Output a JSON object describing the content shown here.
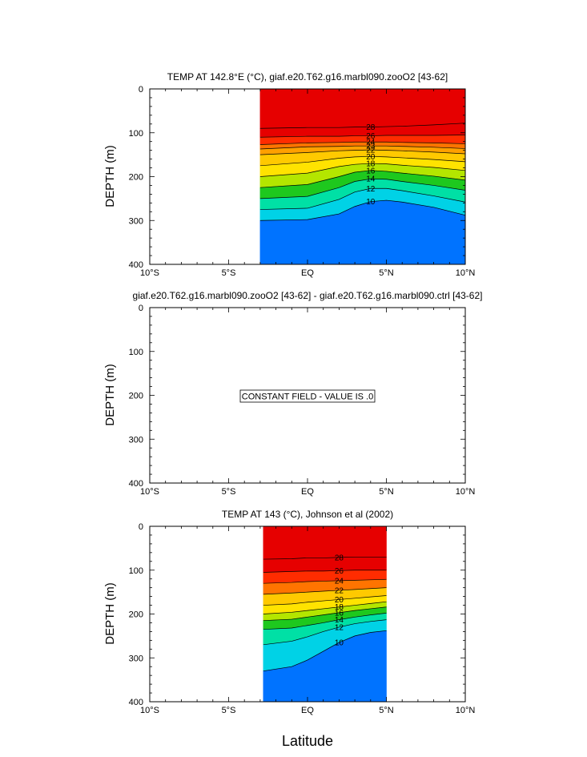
{
  "figure": {
    "xlabel": "Latitude",
    "x_ticks": [
      "10°S",
      "5°S",
      "EQ",
      "5°N",
      "10°N"
    ],
    "y_ticks": [
      "0",
      "100",
      "200",
      "300",
      "400"
    ]
  },
  "chart_data": [
    {
      "type": "heatmap",
      "subtype": "filled-contour depth-latitude section",
      "title": "TEMP AT 142.8°E (°C), giaf.e20.T62.g16.marbl090.zooO2 [43-62]",
      "ylabel": "DEPTH (m)",
      "xlim": [
        -10,
        10
      ],
      "ylim": [
        400,
        0
      ],
      "data_extent_lat": [
        -3,
        10
      ],
      "x": [
        -3,
        0,
        2,
        3,
        4,
        5,
        6,
        8,
        10
      ],
      "contour_levels": [
        28,
        26,
        24,
        23,
        22,
        20,
        18,
        16,
        14,
        12,
        10
      ],
      "contour_depths": {
        "28": [
          90,
          88,
          88,
          87,
          87,
          86,
          85,
          82,
          78
        ],
        "26": [
          110,
          108,
          108,
          107,
          107,
          106,
          106,
          106,
          105
        ],
        "24": [
          127,
          123,
          122,
          121,
          121,
          121,
          122,
          123,
          125
        ],
        "23": [
          137,
          132,
          131,
          130,
          130,
          130,
          131,
          133,
          136
        ],
        "22": [
          150,
          145,
          141,
          140,
          139,
          140,
          141,
          144,
          148
        ],
        "20": [
          175,
          167,
          158,
          155,
          154,
          155,
          157,
          161,
          166
        ],
        "18": [
          200,
          192,
          177,
          172,
          170,
          171,
          174,
          179,
          186
        ],
        "16": [
          225,
          218,
          200,
          190,
          186,
          188,
          192,
          199,
          208
        ],
        "14": [
          250,
          245,
          225,
          211,
          205,
          206,
          211,
          220,
          231
        ],
        "12": [
          275,
          272,
          252,
          235,
          227,
          227,
          232,
          244,
          258
        ],
        "10": [
          300,
          298,
          285,
          268,
          257,
          254,
          258,
          270,
          288
        ]
      },
      "contour_labels": [
        "28",
        "26",
        "24",
        "23",
        "22",
        "20",
        "18",
        "16",
        "14",
        "12",
        "10"
      ]
    },
    {
      "type": "heatmap",
      "subtype": "difference section (empty)",
      "title": "giaf.e20.T62.g16.marbl090.zooO2 [43-62] - giaf.e20.T62.g16.marbl090.ctrl [43-62]",
      "ylabel": "DEPTH (m)",
      "xlim": [
        -10,
        10
      ],
      "ylim": [
        400,
        0
      ],
      "annotation": "CONSTANT FIELD - VALUE IS .0"
    },
    {
      "type": "heatmap",
      "subtype": "filled-contour depth-latitude section (observations)",
      "title": "TEMP AT 143 (°C), Johnson et al (2002)",
      "ylabel": "DEPTH (m)",
      "xlim": [
        -10,
        10
      ],
      "ylim": [
        400,
        0
      ],
      "data_extent_lat": [
        -2.8,
        5
      ],
      "x": [
        -2.8,
        -1,
        0,
        1,
        2,
        3,
        4,
        5
      ],
      "contour_levels": [
        28,
        26,
        24,
        22,
        20,
        18,
        16,
        14,
        12,
        10
      ],
      "contour_depths": {
        "28": [
          75,
          74,
          72,
          72,
          71,
          70,
          70,
          70
        ],
        "26": [
          105,
          103,
          102,
          102,
          101,
          100,
          100,
          100
        ],
        "24": [
          130,
          128,
          126,
          125,
          124,
          123,
          122,
          121
        ],
        "22": [
          155,
          152,
          150,
          148,
          146,
          144,
          142,
          140
        ],
        "20": [
          180,
          177,
          173,
          170,
          167,
          164,
          161,
          158
        ],
        "18": [
          200,
          196,
          192,
          188,
          184,
          180,
          176,
          172
        ],
        "16": [
          215,
          212,
          207,
          202,
          197,
          192,
          188,
          184
        ],
        "14": [
          235,
          232,
          226,
          220,
          213,
          207,
          202,
          198
        ],
        "12": [
          270,
          262,
          252,
          240,
          230,
          222,
          217,
          213
        ],
        "10": [
          330,
          320,
          305,
          285,
          265,
          250,
          242,
          238
        ]
      },
      "contour_labels": [
        "28",
        "26",
        "24",
        "22",
        "20",
        "18",
        "16",
        "14",
        "12",
        "10"
      ]
    }
  ]
}
